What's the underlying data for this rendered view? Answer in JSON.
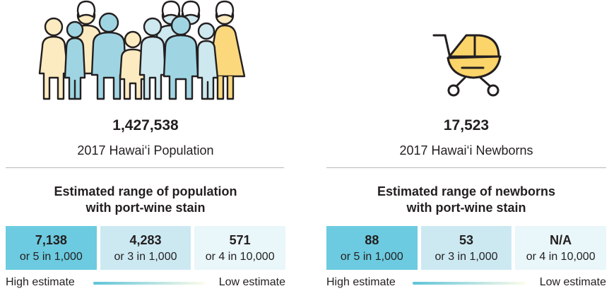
{
  "population_panel": {
    "icon": "people-group-icon",
    "total": "1,427,538",
    "caption": "2017 Hawai‘i Population",
    "section_title_line1": "Estimated range of population",
    "section_title_line2": "with port-wine stain",
    "estimates": [
      {
        "value": "7,138",
        "rate": "or 5 in 1,000",
        "level": "high"
      },
      {
        "value": "4,283",
        "rate": "or 3 in 1,000",
        "level": "mid"
      },
      {
        "value": "571",
        "rate": "or 4 in 10,000",
        "level": "low"
      }
    ],
    "legend_high": "High estimate",
    "legend_low": "Low estimate"
  },
  "newborn_panel": {
    "icon": "baby-stroller-icon",
    "total": "17,523",
    "caption": "2017 Hawai‘i Newborns",
    "section_title_line1": "Estimated range of newborns",
    "section_title_line2": "with port-wine stain",
    "estimates": [
      {
        "value": "88",
        "rate": "or 5 in 1,000",
        "level": "high"
      },
      {
        "value": "53",
        "rate": "or 3 in 1,000",
        "level": "mid"
      },
      {
        "value": "N/A",
        "rate": "or 4 in 10,000",
        "level": "low"
      }
    ],
    "legend_high": "High estimate",
    "legend_low": "Low estimate"
  },
  "colors": {
    "high": "#6ccbe0",
    "mid": "#cce9f2",
    "low": "#e9f6fa",
    "person_teal": "#9fd5e3",
    "person_pale_blue": "#cde8ef",
    "person_cream": "#fcebc0",
    "person_yellow": "#fbd87c",
    "stroller_yellow": "#fbd46a"
  }
}
